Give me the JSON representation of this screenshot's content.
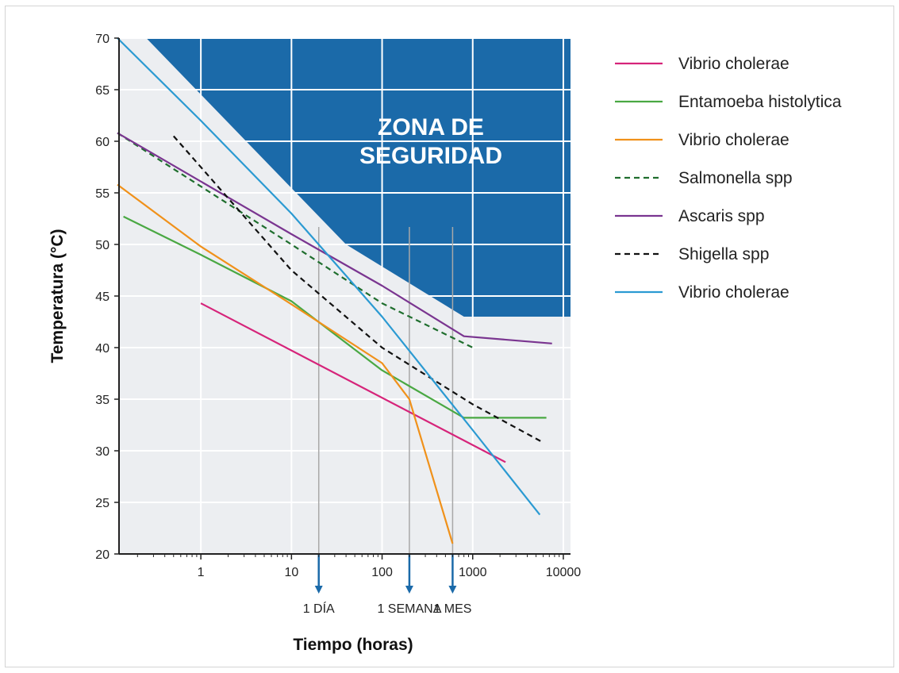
{
  "chart_data": {
    "type": "line",
    "xlabel": "Tiempo (horas)",
    "ylabel": "Temperatura (°C)",
    "x_scale": "log",
    "xlim": [
      0.125,
      12000
    ],
    "ylim": [
      20,
      70
    ],
    "x_ticks": [
      1,
      10,
      100,
      1000,
      10000
    ],
    "x_tick_labels": [
      "1",
      "10",
      "100",
      "1000",
      "10000"
    ],
    "y_ticks": [
      20,
      25,
      30,
      35,
      40,
      45,
      50,
      55,
      60,
      65,
      70
    ],
    "y_tick_labels": [
      "20",
      "25",
      "30",
      "35",
      "40",
      "45",
      "50",
      "55",
      "60",
      "65",
      "70"
    ],
    "grid": true,
    "legend_position": "right",
    "safety_zone": {
      "label_line1": "ZONA DE",
      "label_line2": "SEGURIDAD",
      "color": "#1b6aa9",
      "boundary": [
        [
          0.25,
          70
        ],
        [
          40,
          50
        ],
        [
          800,
          43
        ],
        [
          12000,
          43
        ]
      ]
    },
    "time_markers": [
      {
        "x": 20,
        "label": "1 DÍA"
      },
      {
        "x": 200,
        "label": "1 SEMANA"
      },
      {
        "x": 600,
        "label": "1 MES"
      }
    ],
    "series": [
      {
        "name": "Vibrio cholerae",
        "color": "#d6247a",
        "dash": false,
        "points": [
          [
            1,
            44.3
          ],
          [
            2300,
            28.9
          ]
        ]
      },
      {
        "name": "Entamoeba histolytica",
        "color": "#4aa843",
        "dash": false,
        "points": [
          [
            0.14,
            52.7
          ],
          [
            1,
            49
          ],
          [
            10,
            44.5
          ],
          [
            100,
            37.8
          ],
          [
            800,
            33.2
          ],
          [
            6500,
            33.2
          ]
        ]
      },
      {
        "name": "Vibrio cholerae",
        "color": "#f0911a",
        "dash": false,
        "points": [
          [
            0.12,
            55.8
          ],
          [
            1,
            49.8
          ],
          [
            10,
            44.2
          ],
          [
            100,
            38.5
          ],
          [
            200,
            35
          ],
          [
            600,
            21
          ]
        ]
      },
      {
        "name": "Salmonella spp",
        "color": "#1f6e2e",
        "dash": true,
        "points": [
          [
            0.12,
            60.8
          ],
          [
            10,
            50
          ],
          [
            100,
            44.3
          ],
          [
            1000,
            40
          ]
        ]
      },
      {
        "name": "Ascaris spp",
        "color": "#7a3590",
        "dash": false,
        "points": [
          [
            0.12,
            60.8
          ],
          [
            10,
            51
          ],
          [
            100,
            46
          ],
          [
            800,
            41.1
          ],
          [
            7500,
            40.4
          ]
        ]
      },
      {
        "name": "Shigella spp",
        "color": "#111111",
        "dash": true,
        "points": [
          [
            0.5,
            60.5
          ],
          [
            10,
            47.5
          ],
          [
            100,
            40
          ],
          [
            1000,
            34.5
          ],
          [
            6000,
            30.8
          ]
        ]
      },
      {
        "name": "Vibrio cholerae",
        "color": "#2b9ad2",
        "dash": false,
        "points": [
          [
            0.12,
            70
          ],
          [
            1,
            62
          ],
          [
            10,
            53
          ],
          [
            100,
            43
          ],
          [
            1000,
            32
          ],
          [
            5500,
            23.8
          ]
        ]
      }
    ]
  }
}
